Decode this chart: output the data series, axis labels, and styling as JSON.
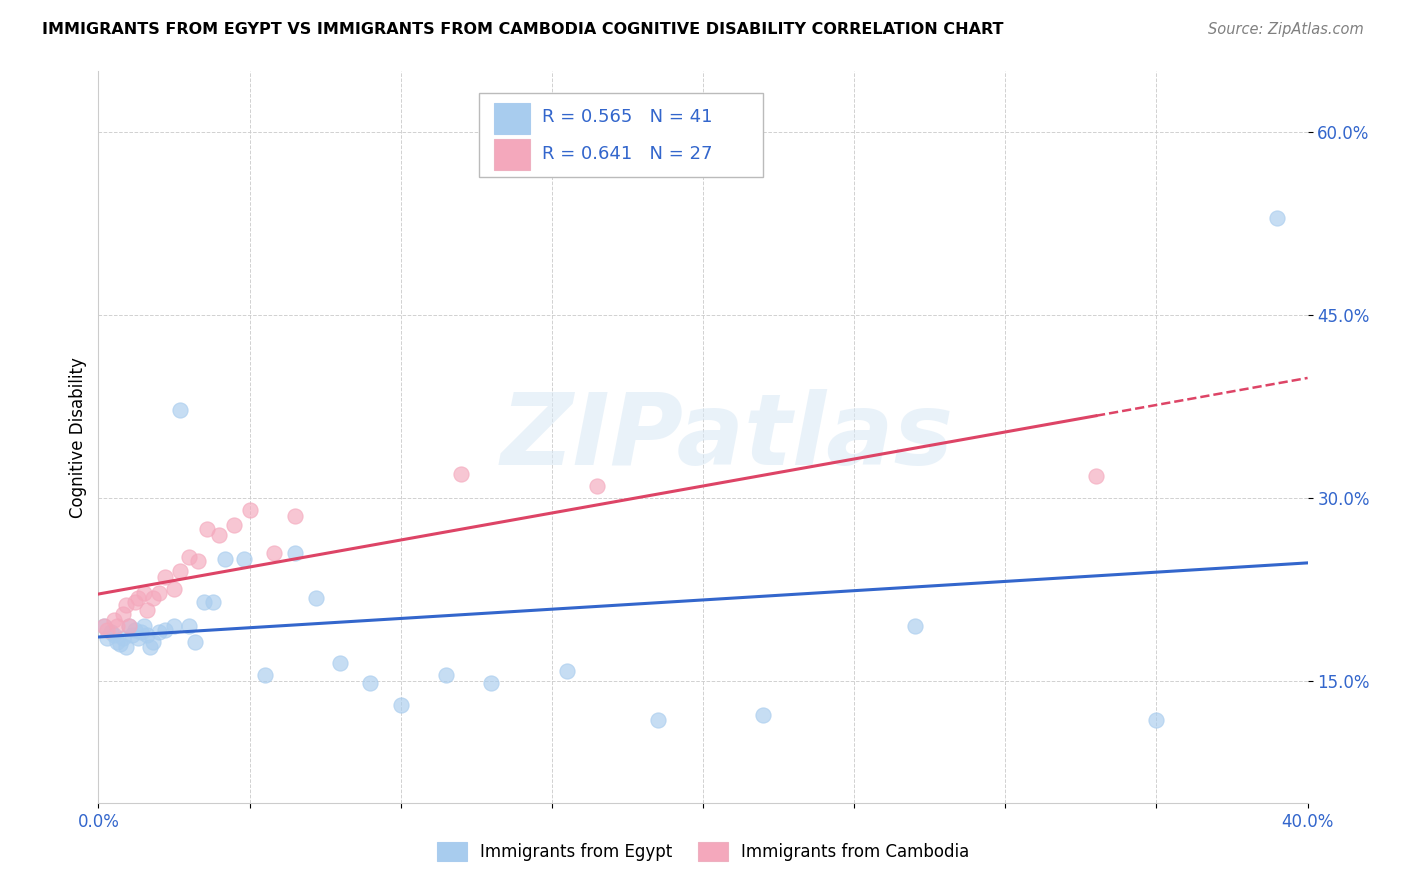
{
  "title": "IMMIGRANTS FROM EGYPT VS IMMIGRANTS FROM CAMBODIA COGNITIVE DISABILITY CORRELATION CHART",
  "source": "Source: ZipAtlas.com",
  "ylabel": "Cognitive Disability",
  "xlim": [
    0.0,
    0.4
  ],
  "ylim": [
    0.05,
    0.65
  ],
  "xtick_positions": [
    0.0,
    0.05,
    0.1,
    0.15,
    0.2,
    0.25,
    0.3,
    0.35,
    0.4
  ],
  "xtick_labels": [
    "0.0%",
    "",
    "",
    "",
    "",
    "",
    "",
    "",
    "40.0%"
  ],
  "ytick_positions": [
    0.15,
    0.3,
    0.45,
    0.6
  ],
  "ytick_labels": [
    "15.0%",
    "30.0%",
    "45.0%",
    "60.0%"
  ],
  "egypt_color": "#A8CCEE",
  "cambodia_color": "#F4A8BC",
  "egypt_R": 0.565,
  "egypt_N": 41,
  "cambodia_R": 0.641,
  "cambodia_N": 27,
  "egypt_line_color": "#3366CC",
  "cambodia_line_color": "#DD4466",
  "tick_color": "#3366CC",
  "watermark": "ZIPatlas",
  "legend_text_color": "#3366CC",
  "egypt_points_x": [
    0.002,
    0.003,
    0.004,
    0.005,
    0.006,
    0.007,
    0.008,
    0.009,
    0.01,
    0.011,
    0.012,
    0.013,
    0.014,
    0.015,
    0.016,
    0.017,
    0.018,
    0.02,
    0.022,
    0.025,
    0.027,
    0.03,
    0.032,
    0.035,
    0.038,
    0.042,
    0.048,
    0.055,
    0.065,
    0.072,
    0.08,
    0.09,
    0.1,
    0.115,
    0.13,
    0.155,
    0.185,
    0.22,
    0.27,
    0.35,
    0.39
  ],
  "egypt_points_y": [
    0.195,
    0.185,
    0.19,
    0.188,
    0.182,
    0.18,
    0.185,
    0.178,
    0.195,
    0.188,
    0.192,
    0.185,
    0.19,
    0.195,
    0.188,
    0.178,
    0.182,
    0.19,
    0.192,
    0.195,
    0.372,
    0.195,
    0.182,
    0.215,
    0.215,
    0.25,
    0.25,
    0.155,
    0.255,
    0.218,
    0.165,
    0.148,
    0.13,
    0.155,
    0.148,
    0.158,
    0.118,
    0.122,
    0.195,
    0.118,
    0.53
  ],
  "cambodia_points_x": [
    0.002,
    0.003,
    0.005,
    0.006,
    0.008,
    0.009,
    0.01,
    0.012,
    0.013,
    0.015,
    0.016,
    0.018,
    0.02,
    0.022,
    0.025,
    0.027,
    0.03,
    0.033,
    0.036,
    0.04,
    0.045,
    0.05,
    0.058,
    0.065,
    0.12,
    0.165,
    0.33
  ],
  "cambodia_points_y": [
    0.195,
    0.192,
    0.2,
    0.195,
    0.205,
    0.212,
    0.195,
    0.215,
    0.218,
    0.222,
    0.208,
    0.218,
    0.222,
    0.235,
    0.225,
    0.24,
    0.252,
    0.248,
    0.275,
    0.27,
    0.278,
    0.29,
    0.255,
    0.285,
    0.32,
    0.31,
    0.318
  ]
}
